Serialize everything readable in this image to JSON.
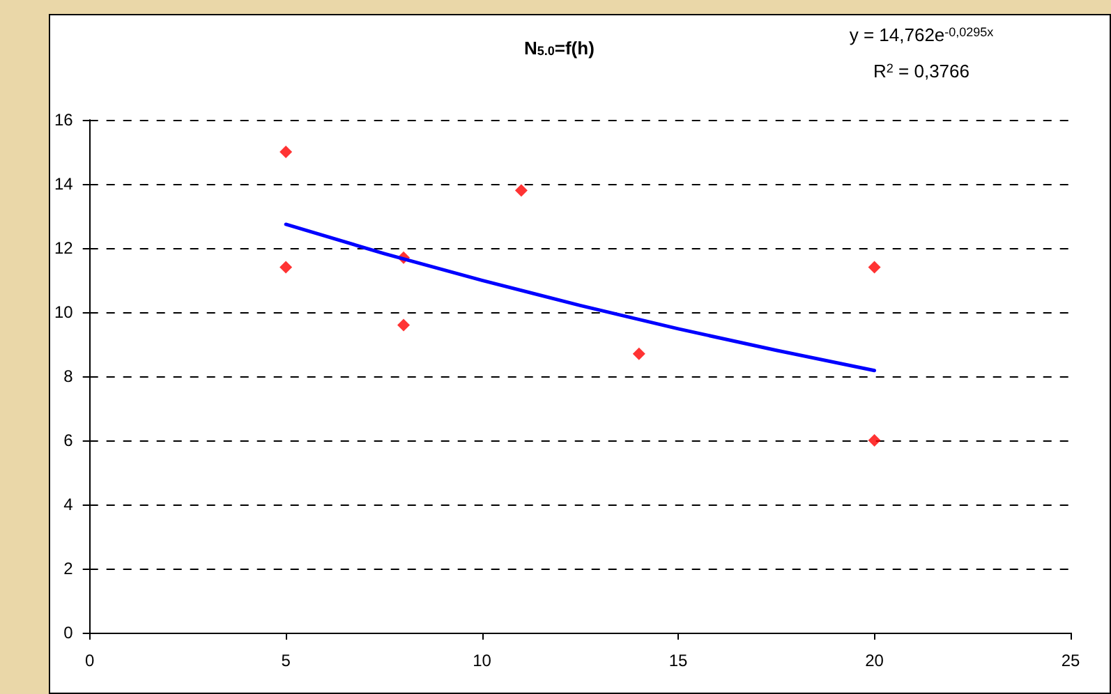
{
  "chart_data": {
    "type": "scatter",
    "title": "N$_{5.0}$=f(h)",
    "annotations": [
      "y = 14,762e$^{-0,0295x}$",
      "R$^{2}$ = 0,3766"
    ],
    "xlim": [
      0,
      25
    ],
    "xticks": [
      0,
      5,
      10,
      15,
      20,
      25
    ],
    "ylim": [
      0,
      16
    ],
    "yticks": [
      0,
      2,
      4,
      6,
      8,
      10,
      12,
      14,
      16
    ],
    "grid": "y",
    "marker": "diamond",
    "series": [
      {
        "color": "#ff0000",
        "x": [
          5,
          5,
          8,
          8,
          11,
          14,
          20,
          20
        ],
        "values": [
          15.0,
          11.4,
          11.7,
          9.6,
          13.8,
          8.7,
          11.4,
          6.0
        ]
      },
      {
        "type": "line",
        "color": "#0000ff",
        "marker": "none",
        "x": [
          5,
          7.5,
          10,
          12.5,
          15,
          17.5,
          20
        ],
        "values": [
          12.74,
          11.83,
          10.99,
          10.21,
          9.48,
          8.81,
          8.18
        ]
      }
    ]
  }
}
